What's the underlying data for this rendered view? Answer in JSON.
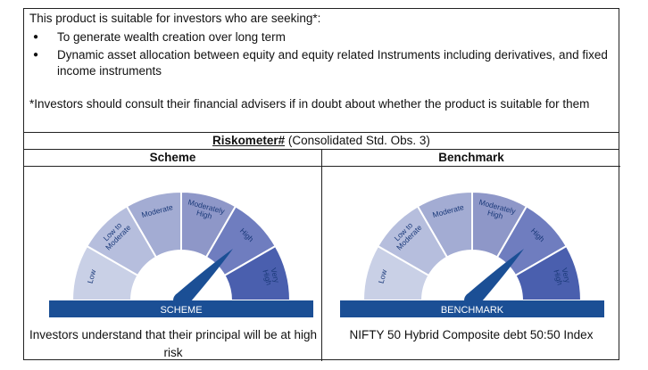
{
  "suitability": {
    "intro": "This product is suitable for investors who are seeking*:",
    "bullets": [
      "To generate wealth creation over long term",
      "Dynamic asset allocation between equity and equity related Instruments including derivatives, and fixed income instruments"
    ],
    "note": "*Investors should consult their financial advisers if in doubt about whether the product is suitable for them"
  },
  "riskometer": {
    "title": "Riskometer#",
    "subtitle": " (Consolidated Std. Obs. 3)"
  },
  "scheme": {
    "heading": "Scheme",
    "meter_label": "SCHEME",
    "level": "High",
    "caption": "Investors understand that their principal will be at high risk"
  },
  "benchmark": {
    "heading": "Benchmark",
    "meter_label": "BENCHMARK",
    "level": "High",
    "caption": "NIFTY 50 Hybrid Composite debt 50:50 Index"
  },
  "meter_levels": [
    "Low",
    "Low to Moderate",
    "Moderate",
    "Moderately High",
    "High",
    "Very High"
  ],
  "meter_label_lines": [
    [
      "Low"
    ],
    [
      "Low to",
      "Moderate"
    ],
    [
      "Moderate"
    ],
    [
      "Moderately",
      "High"
    ],
    [
      "High"
    ],
    [
      "Very",
      "High"
    ]
  ],
  "colors": {
    "segments": [
      "#c9d0e6",
      "#b6bedd",
      "#a3acd3",
      "#8e97c8",
      "#6f7dbf",
      "#4a5fae"
    ],
    "band": "#1b4f95",
    "needle": "#1b4f95",
    "label_band": "#e4e6ee",
    "label_text": "#1b3a7a"
  }
}
